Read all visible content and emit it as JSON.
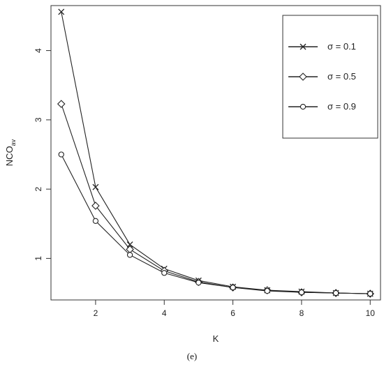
{
  "caption": "(e)",
  "chart_data": {
    "type": "line",
    "xlabel": "K",
    "ylabel": "NCO",
    "ylabel_subscript": "av",
    "x": [
      1,
      2,
      3,
      4,
      5,
      6,
      7,
      8,
      9,
      10
    ],
    "xlim": [
      0.7,
      10.3
    ],
    "ylim": [
      0.4,
      4.65
    ],
    "xticks": [
      2,
      4,
      6,
      8,
      10
    ],
    "yticks": [
      1,
      2,
      3,
      4
    ],
    "grid": false,
    "legend_position": "top-right",
    "series": [
      {
        "name": "σ = 0.1",
        "marker": "cross",
        "color": "#222222",
        "values": [
          4.56,
          2.03,
          1.2,
          0.85,
          0.68,
          0.59,
          0.54,
          0.52,
          0.5,
          0.49
        ]
      },
      {
        "name": "σ = 0.5",
        "marker": "diamond",
        "color": "#222222",
        "values": [
          3.23,
          1.76,
          1.13,
          0.82,
          0.66,
          0.58,
          0.54,
          0.51,
          0.5,
          0.49
        ]
      },
      {
        "name": "σ = 0.9",
        "marker": "circle",
        "color": "#222222",
        "values": [
          2.5,
          1.54,
          1.05,
          0.79,
          0.65,
          0.58,
          0.53,
          0.51,
          0.5,
          0.49
        ]
      }
    ]
  }
}
